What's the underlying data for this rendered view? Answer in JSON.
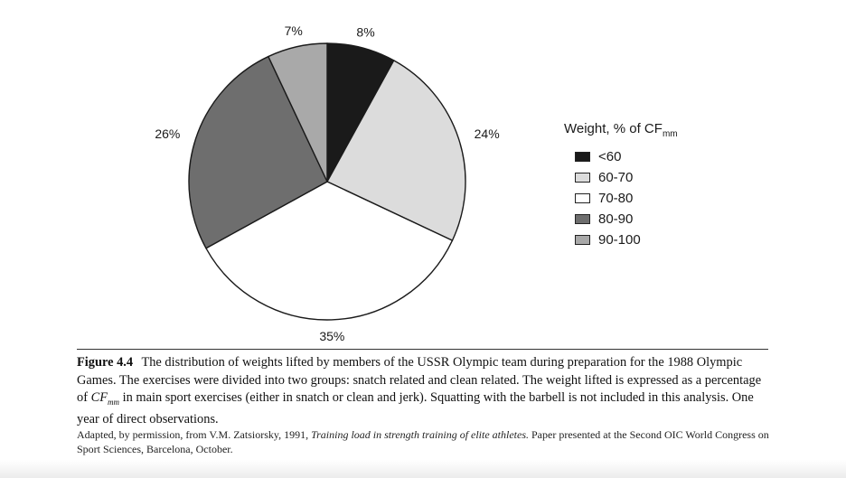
{
  "chart_data": {
    "type": "pie",
    "slices": [
      {
        "label": "<60",
        "value": 8,
        "display": "8%",
        "color": "#1a1a1a"
      },
      {
        "label": "60-70",
        "value": 24,
        "display": "24%",
        "color": "#dcdcdc"
      },
      {
        "label": "70-80",
        "value": 35,
        "display": "35%",
        "color": "#ffffff"
      },
      {
        "label": "80-90",
        "value": 26,
        "display": "26%",
        "color": "#6e6e6e"
      },
      {
        "label": "90-100",
        "value": 7,
        "display": "7%",
        "color": "#a9a9a9"
      }
    ],
    "start_angle_deg": 0,
    "direction": "clockwise",
    "legend": {
      "title_main": "Weight, % of CF",
      "title_sub": "mm",
      "placement": "right"
    }
  },
  "caption": {
    "figure_number": "Figure 4.4",
    "text_before_cf": "The distribution of weights lifted by members of the USSR Olympic team during preparation for the 1988 Olympic Games. The exercises were divided into two groups: snatch related and clean related. The weight lifted is expressed as a percentage of ",
    "cf_main": "CF",
    "cf_sub": "mm",
    "text_after_cf": " in main sport exercises (either in snatch or clean and jerk). Squatting with the barbell is not included in this analysis. One year of direct observations."
  },
  "source": {
    "before_title": "Adapted, by permission, from V.M. Zatsiorsky, 1991, ",
    "title": "Training load in strength training of elite athletes.",
    "after_title": " Paper presented at the Second OIC World Congress on Sport Sciences, Barcelona, October."
  }
}
